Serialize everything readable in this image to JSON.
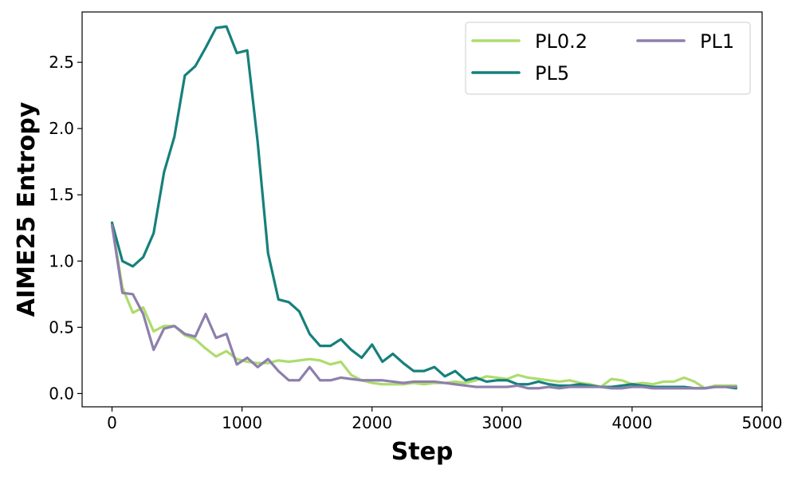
{
  "chart_data": {
    "type": "line",
    "title": "",
    "xlabel": "Step",
    "ylabel": "AIME25 Entropy",
    "xlim": [
      -230,
      5000
    ],
    "ylim": [
      -0.1,
      2.88
    ],
    "x_ticks": [
      0,
      1000,
      2000,
      3000,
      4000,
      5000
    ],
    "x_tick_labels": [
      "0",
      "1000",
      "2000",
      "3000",
      "4000",
      "5000"
    ],
    "y_ticks": [
      0.0,
      0.5,
      1.0,
      1.5,
      2.0,
      2.5
    ],
    "y_tick_labels": [
      "0.0",
      "0.5",
      "1.0",
      "1.5",
      "2.0",
      "2.5"
    ],
    "grid": false,
    "legend_position": "top-right",
    "legend_columns": 2,
    "series": [
      {
        "name": "PL0.2",
        "color": "#addc6e",
        "x": [
          0,
          80,
          160,
          240,
          320,
          400,
          480,
          560,
          640,
          720,
          800,
          880,
          960,
          1040,
          1120,
          1200,
          1280,
          1360,
          1440,
          1520,
          1600,
          1680,
          1760,
          1840,
          1920,
          2000,
          2080,
          2160,
          2240,
          2320,
          2400,
          2480,
          2560,
          2640,
          2720,
          2800,
          2880,
          2960,
          3040,
          3120,
          3200,
          3280,
          3360,
          3440,
          3520,
          3600,
          3680,
          3760,
          3840,
          3920,
          4000,
          4080,
          4160,
          4240,
          4320,
          4400,
          4480,
          4560,
          4640,
          4720,
          4800
        ],
        "y": [
          1.28,
          0.8,
          0.61,
          0.65,
          0.47,
          0.51,
          0.51,
          0.44,
          0.41,
          0.34,
          0.28,
          0.32,
          0.26,
          0.24,
          0.23,
          0.23,
          0.25,
          0.24,
          0.25,
          0.26,
          0.25,
          0.22,
          0.24,
          0.14,
          0.1,
          0.08,
          0.07,
          0.07,
          0.07,
          0.08,
          0.07,
          0.08,
          0.08,
          0.09,
          0.08,
          0.1,
          0.13,
          0.12,
          0.11,
          0.14,
          0.12,
          0.11,
          0.1,
          0.09,
          0.1,
          0.08,
          0.07,
          0.05,
          0.11,
          0.1,
          0.07,
          0.08,
          0.07,
          0.09,
          0.09,
          0.12,
          0.09,
          0.04,
          0.06,
          0.06,
          0.06
        ]
      },
      {
        "name": "PL5",
        "color": "#16807c",
        "x": [
          0,
          80,
          160,
          240,
          320,
          400,
          480,
          560,
          640,
          720,
          800,
          880,
          960,
          1040,
          1120,
          1200,
          1280,
          1360,
          1440,
          1520,
          1600,
          1680,
          1760,
          1840,
          1920,
          2000,
          2080,
          2160,
          2240,
          2320,
          2400,
          2480,
          2560,
          2640,
          2720,
          2800,
          2880,
          2960,
          3040,
          3120,
          3200,
          3280,
          3360,
          3440,
          3520,
          3600,
          3680,
          3760,
          3840,
          3920,
          4000,
          4080,
          4160,
          4240,
          4320,
          4400,
          4480,
          4560,
          4640,
          4720,
          4800
        ],
        "y": [
          1.29,
          1.0,
          0.96,
          1.03,
          1.21,
          1.67,
          1.94,
          2.4,
          2.47,
          2.61,
          2.76,
          2.77,
          2.57,
          2.59,
          1.9,
          1.06,
          0.71,
          0.69,
          0.62,
          0.45,
          0.36,
          0.36,
          0.41,
          0.33,
          0.27,
          0.37,
          0.24,
          0.3,
          0.23,
          0.17,
          0.17,
          0.2,
          0.13,
          0.17,
          0.1,
          0.12,
          0.09,
          0.1,
          0.1,
          0.07,
          0.07,
          0.09,
          0.07,
          0.06,
          0.06,
          0.07,
          0.06,
          0.05,
          0.05,
          0.06,
          0.07,
          0.06,
          0.05,
          0.05,
          0.05,
          0.05,
          0.04,
          0.04,
          0.05,
          0.05,
          0.04
        ]
      },
      {
        "name": "PL1",
        "color": "#8d7fad",
        "x": [
          0,
          80,
          160,
          240,
          320,
          400,
          480,
          560,
          640,
          720,
          800,
          880,
          960,
          1040,
          1120,
          1200,
          1280,
          1360,
          1440,
          1520,
          1600,
          1680,
          1760,
          1840,
          1920,
          2000,
          2080,
          2160,
          2240,
          2320,
          2400,
          2480,
          2560,
          2640,
          2720,
          2800,
          2880,
          2960,
          3040,
          3120,
          3200,
          3280,
          3360,
          3440,
          3520,
          3600,
          3680,
          3760,
          3840,
          3920,
          4000,
          4080,
          4160,
          4240,
          4320,
          4400,
          4480,
          4560,
          4640,
          4720,
          4800
        ],
        "y": [
          1.27,
          0.76,
          0.75,
          0.6,
          0.33,
          0.49,
          0.51,
          0.45,
          0.43,
          0.6,
          0.42,
          0.45,
          0.22,
          0.27,
          0.2,
          0.26,
          0.17,
          0.1,
          0.1,
          0.2,
          0.1,
          0.1,
          0.12,
          0.11,
          0.1,
          0.1,
          0.1,
          0.09,
          0.08,
          0.09,
          0.09,
          0.09,
          0.08,
          0.07,
          0.06,
          0.05,
          0.05,
          0.05,
          0.05,
          0.06,
          0.04,
          0.04,
          0.05,
          0.04,
          0.05,
          0.05,
          0.05,
          0.05,
          0.04,
          0.04,
          0.05,
          0.05,
          0.04,
          0.04,
          0.04,
          0.04,
          0.04,
          0.04,
          0.05,
          0.05,
          0.05
        ]
      }
    ]
  }
}
